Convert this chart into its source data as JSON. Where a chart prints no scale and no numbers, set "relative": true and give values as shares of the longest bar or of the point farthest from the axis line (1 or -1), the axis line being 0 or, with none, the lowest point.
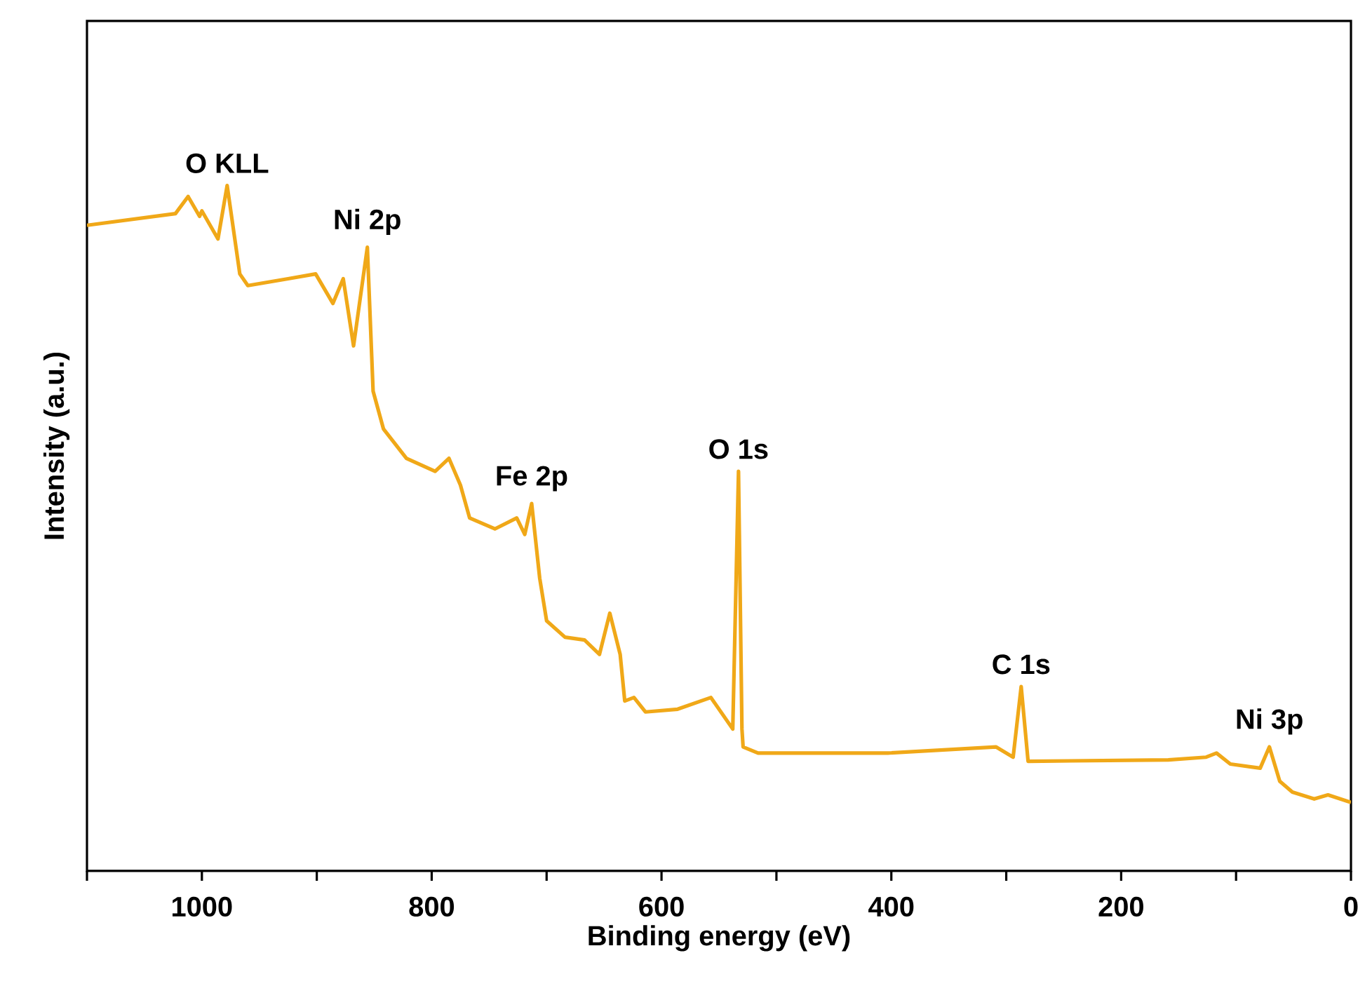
{
  "chart_data": {
    "type": "line",
    "relative": true,
    "xlabel": "Binding energy (eV)",
    "ylabel": "Intensity (a.u.)",
    "xlim": [
      1100,
      0
    ],
    "xticks": [
      {
        "value": 1100,
        "label": null
      },
      1000,
      {
        "value": 900,
        "label": null
      },
      800,
      {
        "value": 700,
        "label": null
      },
      600,
      {
        "value": 500,
        "label": null
      },
      400,
      {
        "value": 300,
        "label": null
      },
      200,
      {
        "value": 100,
        "label": null
      },
      0
    ],
    "tick_labels": "x",
    "marker": "none",
    "line_style": "solid",
    "grid": false,
    "x": [
      1100,
      1023,
      1012,
      1002,
      1000,
      986,
      978,
      967,
      960,
      925,
      901,
      886,
      877,
      868,
      856,
      851,
      842,
      822,
      797,
      785,
      775,
      767,
      745,
      726,
      719,
      713,
      706,
      700,
      684,
      667,
      654,
      645,
      636,
      632,
      624,
      614,
      586,
      557,
      538,
      533,
      530,
      529,
      516,
      403,
      309,
      294,
      287,
      281,
      159,
      126,
      117,
      105,
      79,
      71,
      62,
      51,
      32,
      20,
      0
    ],
    "series": [
      {
        "color": "#f0a818",
        "values": [
          0.942,
          0.959,
          0.984,
          0.955,
          0.963,
          0.922,
          1.0,
          0.871,
          0.854,
          0.864,
          0.871,
          0.828,
          0.864,
          0.766,
          0.91,
          0.7,
          0.645,
          0.602,
          0.583,
          0.602,
          0.563,
          0.515,
          0.499,
          0.515,
          0.491,
          0.536,
          0.427,
          0.365,
          0.341,
          0.337,
          0.316,
          0.376,
          0.316,
          0.248,
          0.253,
          0.232,
          0.236,
          0.253,
          0.207,
          0.583,
          0.207,
          0.181,
          0.172,
          0.172,
          0.181,
          0.166,
          0.269,
          0.16,
          0.162,
          0.166,
          0.172,
          0.156,
          0.15,
          0.181,
          0.131,
          0.115,
          0.105,
          0.111,
          0.1
        ]
      }
    ],
    "annotations": [
      {
        "text": "O KLL",
        "x": 978,
        "y": 1.0
      },
      {
        "text": "Ni 2p",
        "x": 856,
        "y": 0.91
      },
      {
        "text": "Fe 2p",
        "x": 713,
        "y": 0.536
      },
      {
        "text": "O 1s",
        "x": 533,
        "y": 0.583
      },
      {
        "text": "C 1s",
        "x": 287,
        "y": 0.269
      },
      {
        "text": "Ni 3p",
        "x": 71,
        "y": 0.181
      }
    ]
  }
}
